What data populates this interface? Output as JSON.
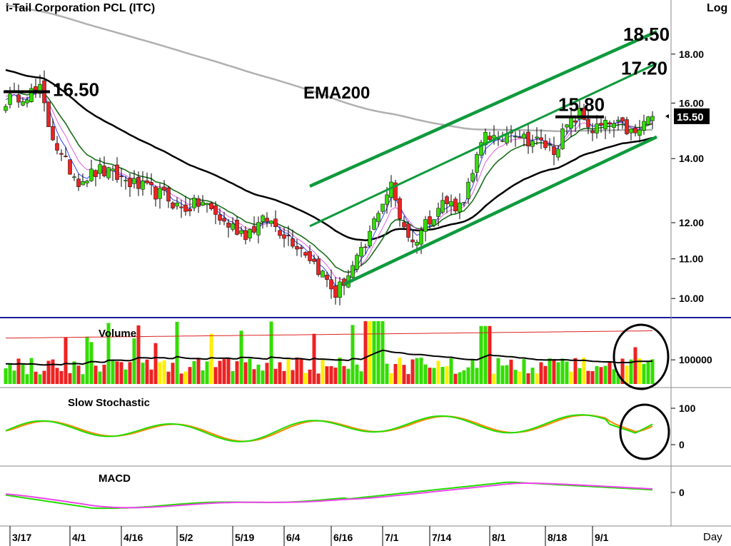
{
  "title": "i-Tail Corporation PCL (ITC)",
  "scale_label": "Log",
  "x_axis_label": "Day",
  "colors": {
    "up": "#33dd00",
    "down": "#ee2222",
    "neutral": "#ffee00",
    "ema200": "#b0b0b0",
    "ma_black": "#000000",
    "ema_green": "#1a6e1a",
    "ema_pink": "#e060e0",
    "ema_blue": "#3344ee",
    "channel": "#0e9a3c",
    "stoch_k": "#22dd00",
    "stoch_d": "#ff8800",
    "macd": "#22dd00",
    "signal": "#ee44ee",
    "last_badge": "#000000"
  },
  "chart_data": {
    "type": "candlestick",
    "scale": "log",
    "ylim": [
      9.6,
      20.5
    ],
    "price_ticks": [
      "10.00",
      "11.00",
      "12.00",
      "14.00",
      "16.00",
      "18.00"
    ],
    "date_labels": [
      "3/17",
      "4/1",
      "4/16",
      "5/2",
      "5/19",
      "6/4",
      "6/16",
      "7/1",
      "7/14",
      "8/1",
      "8/18",
      "9/1"
    ],
    "date_label_bars": [
      1,
      15,
      27,
      40,
      53,
      65,
      76,
      88,
      99,
      113,
      126,
      137
    ],
    "last_price": "15.50",
    "annotations": [
      {
        "text": "16.50",
        "price": 16.5
      },
      {
        "text": "15.80",
        "price": 15.8
      },
      {
        "text": "17.20",
        "price": 17.2
      },
      {
        "text": "18.50",
        "price": 18.5
      },
      {
        "text": "EMA200"
      }
    ],
    "channel_lines": [
      {
        "name": "upper",
        "from": [
          71,
          13.1
        ],
        "to": [
          152,
          19.0
        ]
      },
      {
        "name": "middle",
        "from": [
          71,
          11.9
        ],
        "to": [
          152,
          17.6
        ]
      },
      {
        "name": "lower",
        "from": [
          79,
          10.35
        ],
        "to": [
          152,
          14.75
        ]
      }
    ],
    "key_closes": [
      [
        0,
        16.1
      ],
      [
        3,
        16.3
      ],
      [
        8,
        16.5
      ],
      [
        10,
        15.2
      ],
      [
        13,
        14.0
      ],
      [
        17,
        13.3
      ],
      [
        22,
        13.6
      ],
      [
        26,
        13.4
      ],
      [
        31,
        13.1
      ],
      [
        37,
        12.8
      ],
      [
        41,
        12.4
      ],
      [
        46,
        12.6
      ],
      [
        51,
        12.0
      ],
      [
        56,
        11.7
      ],
      [
        61,
        12.1
      ],
      [
        66,
        11.6
      ],
      [
        70,
        11.2
      ],
      [
        74,
        10.6
      ],
      [
        77,
        10.1
      ],
      [
        80,
        10.6
      ],
      [
        84,
        11.3
      ],
      [
        87,
        12.4
      ],
      [
        90,
        13.1
      ],
      [
        92,
        12.2
      ],
      [
        95,
        11.4
      ],
      [
        98,
        12.0
      ],
      [
        102,
        12.6
      ],
      [
        106,
        12.5
      ],
      [
        109,
        13.4
      ],
      [
        112,
        15.0
      ],
      [
        115,
        14.5
      ],
      [
        118,
        15.1
      ],
      [
        121,
        14.7
      ],
      [
        124,
        14.6
      ],
      [
        128,
        14.3
      ],
      [
        131,
        15.1
      ],
      [
        134,
        15.6
      ],
      [
        137,
        15.0
      ],
      [
        141,
        15.2
      ],
      [
        144,
        15.1
      ],
      [
        147,
        14.8
      ],
      [
        149,
        15.2
      ],
      [
        150,
        15.5
      ]
    ],
    "volume": {
      "axis_label": "100000",
      "scale_value": 100000,
      "series_max": 260000
    },
    "stochastic": {
      "ticks": [
        "100",
        "0"
      ],
      "range": [
        0,
        100
      ]
    },
    "macd": {
      "ticks": [
        "0"
      ]
    }
  },
  "panels": {
    "volume": {
      "label": "Volume"
    },
    "stochastic": {
      "label": "Slow  Stochastic"
    },
    "macd": {
      "label": "MACD"
    }
  }
}
